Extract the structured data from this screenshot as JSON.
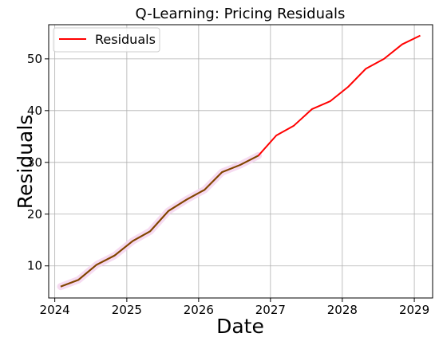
{
  "chart_data": {
    "type": "line",
    "title": "Q-Learning: Pricing Residuals",
    "xlabel": "Date",
    "ylabel": "Residuals",
    "x_axis_type": "date",
    "xlim": [
      "2023-12-01",
      "2029-04-04"
    ],
    "ylim": [
      3.8,
      56.6
    ],
    "x_ticks": [
      "2024",
      "2025",
      "2026",
      "2027",
      "2028",
      "2029"
    ],
    "y_ticks": [
      10,
      20,
      30,
      40,
      50
    ],
    "grid": true,
    "legend_position": "upper-left",
    "series": [
      {
        "name": "Residuals",
        "color": "#ff0000",
        "x": [
          "2024-01-31",
          "2024-04-30",
          "2024-07-31",
          "2024-10-31",
          "2025-01-31",
          "2025-04-30",
          "2025-07-31",
          "2025-10-31",
          "2026-01-31",
          "2026-04-30",
          "2026-07-31",
          "2026-10-31",
          "2027-01-31",
          "2027-04-30",
          "2027-07-31",
          "2027-10-31",
          "2028-01-31",
          "2028-04-30",
          "2028-07-31",
          "2028-10-31",
          "2029-01-31"
        ],
        "y": [
          6.0,
          7.3,
          10.2,
          12.0,
          14.8,
          16.7,
          20.6,
          22.8,
          24.7,
          28.1,
          29.5,
          31.3,
          35.2,
          37.1,
          40.3,
          41.8,
          44.6,
          48.1,
          50.0,
          52.8,
          54.5
        ]
      }
    ],
    "overlay_color": "#7a4a00",
    "overlay_end_index": 11,
    "band_color": "#f5d5ef"
  }
}
